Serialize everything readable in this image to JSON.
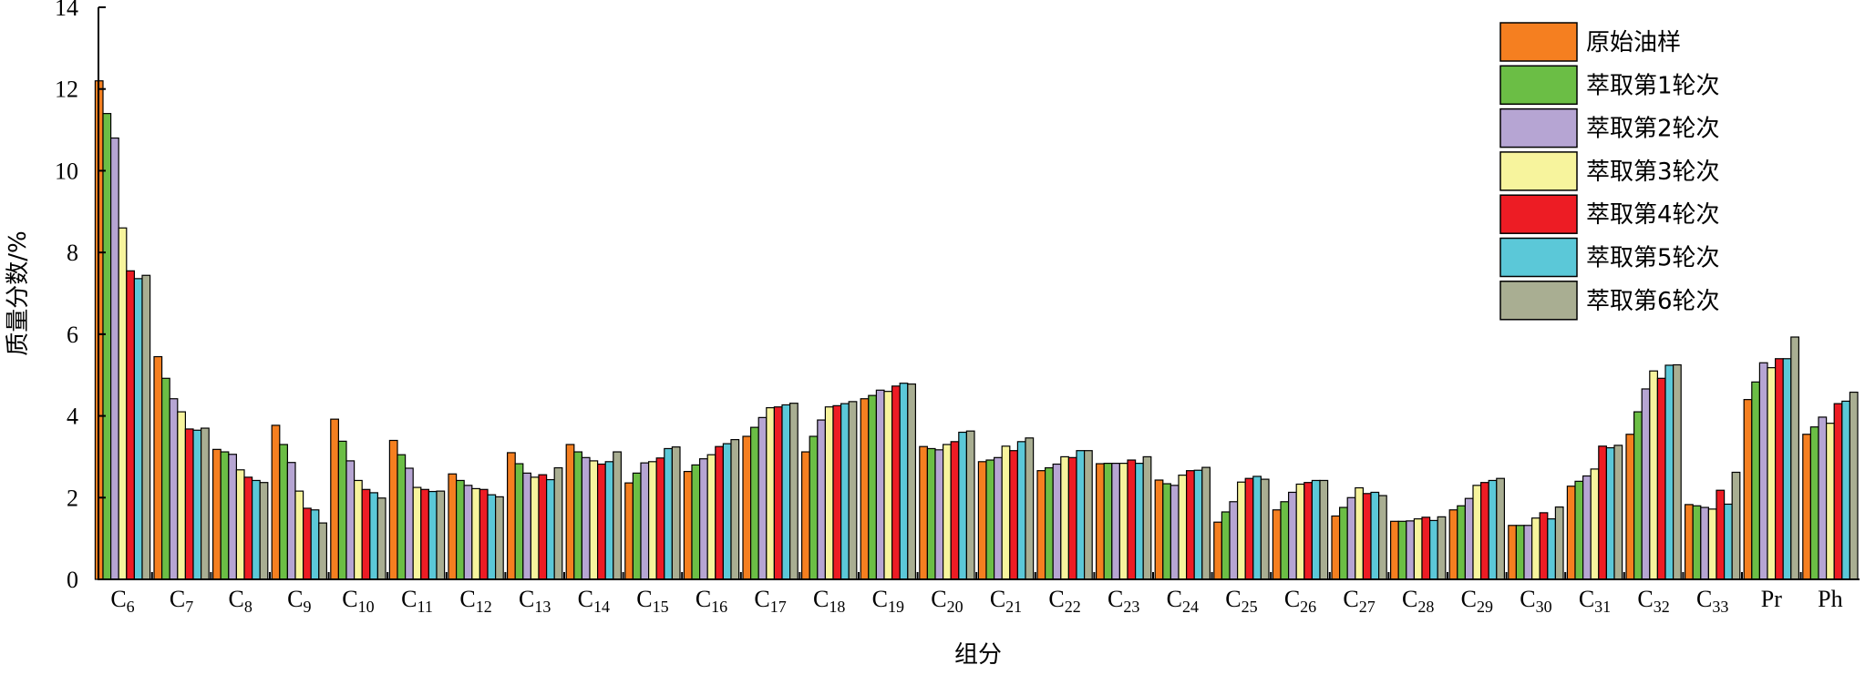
{
  "chart_data": {
    "type": "bar",
    "title": "",
    "xlabel": "组分",
    "ylabel": "质量分数/%",
    "ylim": [
      0,
      14
    ],
    "yticks": [
      "0",
      "2",
      "4",
      "6",
      "8",
      "10",
      "12",
      "14"
    ],
    "grid": false,
    "legend_position": "top-right",
    "categories": [
      {
        "base": "C",
        "sub": "6"
      },
      {
        "base": "C",
        "sub": "7"
      },
      {
        "base": "C",
        "sub": "8"
      },
      {
        "base": "C",
        "sub": "9"
      },
      {
        "base": "C",
        "sub": "10"
      },
      {
        "base": "C",
        "sub": "11"
      },
      {
        "base": "C",
        "sub": "12"
      },
      {
        "base": "C",
        "sub": "13"
      },
      {
        "base": "C",
        "sub": "14"
      },
      {
        "base": "C",
        "sub": "15"
      },
      {
        "base": "C",
        "sub": "16"
      },
      {
        "base": "C",
        "sub": "17"
      },
      {
        "base": "C",
        "sub": "18"
      },
      {
        "base": "C",
        "sub": "19"
      },
      {
        "base": "C",
        "sub": "20"
      },
      {
        "base": "C",
        "sub": "21"
      },
      {
        "base": "C",
        "sub": "22"
      },
      {
        "base": "C",
        "sub": "23"
      },
      {
        "base": "C",
        "sub": "24"
      },
      {
        "base": "C",
        "sub": "25"
      },
      {
        "base": "C",
        "sub": "26"
      },
      {
        "base": "C",
        "sub": "27"
      },
      {
        "base": "C",
        "sub": "28"
      },
      {
        "base": "C",
        "sub": "29"
      },
      {
        "base": "C",
        "sub": "30"
      },
      {
        "base": "C",
        "sub": "31"
      },
      {
        "base": "C",
        "sub": "32"
      },
      {
        "base": "C",
        "sub": "33"
      },
      {
        "base": "Pr",
        "sub": ""
      },
      {
        "base": "Ph",
        "sub": ""
      }
    ],
    "series": [
      {
        "name": "原始油样",
        "color": "#F57F20",
        "values": [
          12.2,
          5.45,
          3.18,
          3.77,
          3.92,
          3.4,
          2.58,
          3.1,
          3.3,
          2.36,
          2.64,
          3.5,
          3.12,
          4.42,
          3.25,
          2.88,
          2.66,
          2.83,
          2.43,
          1.4,
          1.7,
          1.55,
          1.42,
          1.7,
          1.32,
          2.28,
          3.55,
          1.83,
          4.4,
          3.55
        ]
      },
      {
        "name": "萃取第1轮次",
        "color": "#6BBE45",
        "values": [
          11.4,
          4.92,
          3.12,
          3.3,
          3.38,
          3.05,
          2.42,
          2.83,
          3.12,
          2.6,
          2.8,
          3.72,
          3.5,
          4.5,
          3.2,
          2.92,
          2.73,
          2.84,
          2.34,
          1.65,
          1.9,
          1.76,
          1.42,
          1.8,
          1.32,
          2.4,
          4.1,
          1.8,
          4.83,
          3.73
        ]
      },
      {
        "name": "萃取第2轮次",
        "color": "#B6A5D3",
        "values": [
          10.8,
          4.42,
          3.06,
          2.86,
          2.9,
          2.72,
          2.3,
          2.6,
          2.98,
          2.85,
          2.95,
          3.96,
          3.9,
          4.63,
          3.17,
          2.98,
          2.82,
          2.84,
          2.3,
          1.9,
          2.13,
          2.0,
          1.43,
          1.98,
          1.32,
          2.53,
          4.66,
          1.76,
          5.3,
          3.97
        ]
      },
      {
        "name": "萃取第3轮次",
        "color": "#F7F49D",
        "values": [
          8.6,
          4.1,
          2.68,
          2.16,
          2.42,
          2.25,
          2.22,
          2.5,
          2.9,
          2.88,
          3.05,
          4.2,
          4.22,
          4.6,
          3.3,
          3.26,
          3.0,
          2.84,
          2.55,
          2.38,
          2.33,
          2.24,
          1.48,
          2.3,
          1.5,
          2.7,
          5.1,
          1.72,
          5.18,
          3.82
        ]
      },
      {
        "name": "萃取第4轮次",
        "color": "#ED1C24",
        "values": [
          7.55,
          3.68,
          2.5,
          1.74,
          2.2,
          2.2,
          2.2,
          2.56,
          2.82,
          2.97,
          3.25,
          4.22,
          4.25,
          4.73,
          3.37,
          3.15,
          2.98,
          2.92,
          2.66,
          2.47,
          2.37,
          2.1,
          1.52,
          2.37,
          1.63,
          3.26,
          4.92,
          2.18,
          5.4,
          4.3
        ]
      },
      {
        "name": "萃取第5轮次",
        "color": "#5BC8D8",
        "values": [
          7.36,
          3.65,
          2.42,
          1.7,
          2.12,
          2.15,
          2.07,
          2.44,
          2.88,
          3.2,
          3.32,
          4.27,
          4.3,
          4.8,
          3.6,
          3.37,
          3.15,
          2.84,
          2.67,
          2.52,
          2.42,
          2.13,
          1.44,
          2.42,
          1.48,
          3.22,
          5.24,
          1.84,
          5.4,
          4.36
        ]
      },
      {
        "name": "萃取第6轮次",
        "color": "#A9AE92",
        "values": [
          7.44,
          3.7,
          2.37,
          1.38,
          1.99,
          2.16,
          2.02,
          2.73,
          3.12,
          3.24,
          3.42,
          4.31,
          4.35,
          4.78,
          3.63,
          3.46,
          3.15,
          3.0,
          2.74,
          2.45,
          2.42,
          2.05,
          1.53,
          2.47,
          1.77,
          3.28,
          5.25,
          2.62,
          5.93,
          4.58
        ]
      }
    ]
  }
}
